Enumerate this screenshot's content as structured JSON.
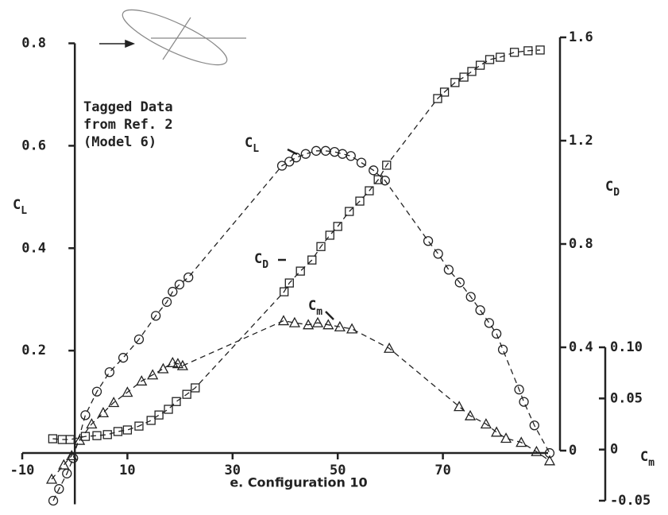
{
  "chart_data": {
    "type": "scatter-line",
    "caption": "e. Configuration 10",
    "note": [
      "Tagged Data",
      "from Ref. 2",
      "(Model 6)"
    ],
    "xlim": [
      -10,
      90
    ],
    "xticks": [
      -10,
      10,
      30,
      50,
      70
    ],
    "ylim": [
      -0.1,
      0.8
    ],
    "yticks": [
      0.2,
      0.4,
      0.6,
      0.8
    ],
    "y_label": {
      "main": "C",
      "sub": "L"
    },
    "y2lim": [
      0,
      1.6
    ],
    "y2ticks": [
      0,
      0.4,
      0.8,
      1.2,
      1.6
    ],
    "y2_label": {
      "main": "C",
      "sub": "D"
    },
    "y3lim": [
      -0.05,
      0.1
    ],
    "y3ticks": [
      -0.05,
      0,
      0.05,
      {
        "value": 0.1,
        "label": "0.10"
      }
    ],
    "y3_label": {
      "main": "C",
      "sub": "m"
    },
    "series": [
      {
        "label": {
          "main": "C",
          "sub": "L"
        },
        "marker": "circle",
        "axis": "y",
        "color": "#222",
        "x": [
          -4.1,
          -3,
          -1.5,
          -0.3,
          2,
          4.2,
          6.6,
          9.2,
          12.2,
          15.4,
          17.5,
          18.6,
          19.9,
          21.6,
          39.4,
          40.8,
          42.1,
          43.9,
          45.9,
          47.7,
          49.4,
          50.9,
          52.5,
          54.5,
          56.8,
          59,
          67.2,
          69.1,
          71.1,
          73.2,
          75.3,
          77.1,
          78.8,
          80.2,
          81.4,
          84.5,
          85.4,
          87.4,
          90.3
        ],
        "values": [
          -0.093,
          -0.07,
          -0.04,
          -0.01,
          0.074,
          0.12,
          0.158,
          0.186,
          0.222,
          0.268,
          0.295,
          0.315,
          0.329,
          0.343,
          0.561,
          0.569,
          0.577,
          0.584,
          0.59,
          0.59,
          0.588,
          0.584,
          0.58,
          0.567,
          0.552,
          0.532,
          0.414,
          0.389,
          0.358,
          0.333,
          0.305,
          0.279,
          0.254,
          0.233,
          0.202,
          0.124,
          0.1,
          0.054,
          0
        ]
      },
      {
        "label": {
          "main": "C",
          "sub": "D"
        },
        "marker": "square",
        "axis": "y2",
        "color": "#222",
        "x": [
          -4.2,
          -2.4,
          -0.9,
          2,
          4.2,
          6.2,
          8.2,
          10,
          12.2,
          14.5,
          16,
          17.8,
          19.3,
          21.3,
          22.9,
          39.8,
          40.8,
          42.9,
          45.1,
          46.8,
          48.5,
          50,
          52.2,
          54.2,
          56,
          57.7,
          59.3,
          69,
          70.3,
          72.3,
          74,
          75.5,
          77.1,
          78.9,
          80.9,
          83.6,
          86.2,
          88.5
        ],
        "values": [
          0.046,
          0.043,
          0.043,
          0.055,
          0.058,
          0.062,
          0.074,
          0.08,
          0.095,
          0.117,
          0.138,
          0.16,
          0.19,
          0.218,
          0.243,
          0.615,
          0.649,
          0.695,
          0.738,
          0.79,
          0.834,
          0.868,
          0.926,
          0.966,
          1.006,
          1.049,
          1.105,
          1.363,
          1.388,
          1.425,
          1.446,
          1.468,
          1.492,
          1.514,
          1.523,
          1.542,
          1.548,
          1.551
        ]
      },
      {
        "label": {
          "main": "C",
          "sub": "m"
        },
        "marker": "triangle",
        "axis": "y3",
        "color": "#222",
        "x": [
          -4.4,
          -2.1,
          -0.6,
          0.9,
          3.2,
          5.4,
          7.4,
          10,
          12.7,
          14.8,
          16.8,
          18.6,
          19.6,
          20.5,
          39.7,
          41.8,
          44.4,
          46.2,
          48.2,
          50.4,
          52.7,
          59.8,
          73.1,
          75.2,
          78.2,
          80.2,
          82,
          84.9,
          87.8,
          90.3
        ],
        "values": [
          -0.029,
          -0.015,
          -0.006,
          0.009,
          0.025,
          0.036,
          0.046,
          0.056,
          0.067,
          0.073,
          0.079,
          0.085,
          0.084,
          0.082,
          0.126,
          0.124,
          0.122,
          0.124,
          0.122,
          0.12,
          0.118,
          0.099,
          0.042,
          0.033,
          0.025,
          0.017,
          0.011,
          0.007,
          -0.002,
          -0.011
        ]
      }
    ]
  }
}
